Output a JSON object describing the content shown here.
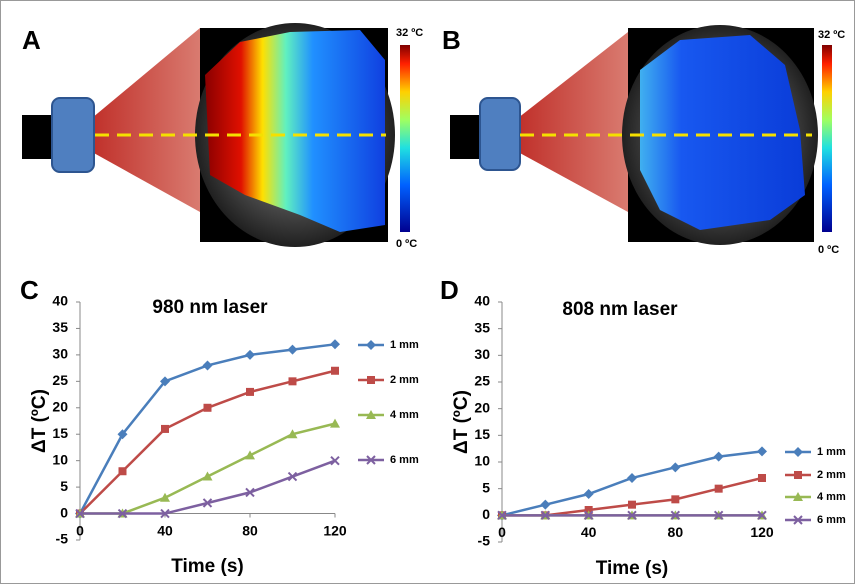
{
  "figure": {
    "panel_labels": [
      "A",
      "B",
      "C",
      "D"
    ],
    "colorbar": {
      "max_label": "32 ºC",
      "min_label": "0 ºC"
    }
  },
  "chart_data": [
    {
      "type": "line",
      "title": "980 nm laser",
      "x_label": "Time (s)",
      "y_label": "ΔT (ºC)",
      "x": [
        0,
        20,
        40,
        60,
        80,
        100,
        120
      ],
      "xlim": [
        0,
        120
      ],
      "xticks": [
        0,
        40,
        80,
        120
      ],
      "ylim": [
        -5,
        40
      ],
      "yticks": [
        -5,
        0,
        5,
        10,
        15,
        20,
        25,
        30,
        35,
        40
      ],
      "legend": "right",
      "series": [
        {
          "name": "1 mm",
          "color": "#4a7ebb",
          "marker": "diamond",
          "values": [
            0,
            15,
            25,
            28,
            30,
            31,
            32
          ]
        },
        {
          "name": "2 mm",
          "color": "#be4b48",
          "marker": "square",
          "values": [
            0,
            8,
            16,
            20,
            23,
            25,
            27
          ]
        },
        {
          "name": "4 mm",
          "color": "#98b954",
          "marker": "triangle",
          "values": [
            0,
            0,
            3,
            7,
            11,
            15,
            17
          ]
        },
        {
          "name": "6 mm",
          "color": "#7d60a0",
          "marker": "x",
          "values": [
            0,
            0,
            0,
            2,
            4,
            7,
            10
          ]
        }
      ]
    },
    {
      "type": "line",
      "title": "808 nm laser",
      "x_label": "Time (s)",
      "y_label": "ΔT (ºC)",
      "x": [
        0,
        20,
        40,
        60,
        80,
        100,
        120
      ],
      "xlim": [
        0,
        120
      ],
      "xticks": [
        0,
        40,
        80,
        120
      ],
      "ylim": [
        -5,
        40
      ],
      "yticks": [
        -5,
        0,
        5,
        10,
        15,
        20,
        25,
        30,
        35,
        40
      ],
      "legend": "right",
      "series": [
        {
          "name": "1 mm",
          "color": "#4a7ebb",
          "marker": "diamond",
          "values": [
            0,
            2,
            4,
            7,
            9,
            11,
            12
          ]
        },
        {
          "name": "2 mm",
          "color": "#be4b48",
          "marker": "square",
          "values": [
            0,
            0,
            1,
            2,
            3,
            5,
            7
          ]
        },
        {
          "name": "4 mm",
          "color": "#98b954",
          "marker": "triangle",
          "values": [
            0,
            0,
            0,
            0,
            0,
            0,
            0
          ]
        },
        {
          "name": "6 mm",
          "color": "#7d60a0",
          "marker": "x",
          "values": [
            0,
            0,
            0,
            0,
            0,
            0,
            0
          ]
        }
      ]
    }
  ]
}
